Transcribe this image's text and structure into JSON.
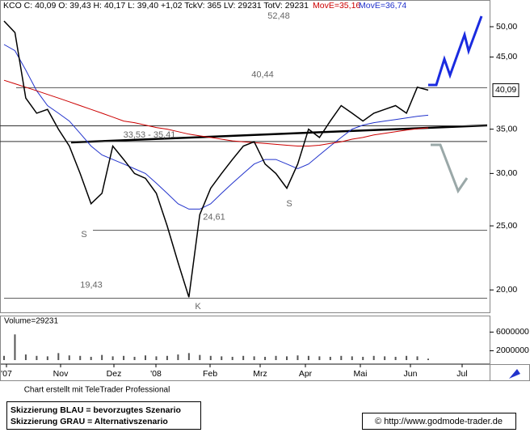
{
  "chart_data": {
    "type": "line",
    "log_scale": true,
    "ylim": [
      18.5,
      53.5
    ],
    "yticks": [
      {
        "value": 20,
        "label": "20,00"
      },
      {
        "value": 25,
        "label": "25,00"
      },
      {
        "value": 30,
        "label": "30,00"
      },
      {
        "value": 35,
        "label": "35,00"
      },
      {
        "value": 45,
        "label": "45,00"
      },
      {
        "value": 50,
        "label": "50,00"
      }
    ],
    "categories": [
      null,
      null,
      null,
      null,
      null,
      null,
      null,
      null,
      null,
      null,
      null,
      null,
      null,
      null,
      null,
      null,
      null,
      null,
      null,
      null,
      null,
      null,
      null,
      null,
      null,
      null,
      null,
      null,
      null,
      null,
      null,
      null,
      null,
      null,
      null,
      null,
      null,
      null,
      null,
      null
    ],
    "month_labels": [
      "'07",
      "Nov",
      "Dez",
      "'08",
      "Feb",
      "Mrz",
      "Apr",
      "Mai",
      "Jun",
      "Jul"
    ],
    "series": [
      {
        "name": "KCO C: 40,09 O: 39,43 H: 40,17 L: 39,40 +1,02 TckV: 365 LV: 29231 TotV: 29231",
        "color": "#000000",
        "values": [
          51,
          49,
          39,
          37,
          37.5,
          35,
          33,
          30,
          27,
          28,
          33,
          31.5,
          30,
          29.5,
          28,
          25,
          22,
          19.5,
          26,
          28.5,
          30,
          31.5,
          33,
          33.5,
          31,
          30,
          28.5,
          31,
          35,
          34,
          36,
          38,
          37,
          36,
          37,
          37.5,
          38,
          37,
          40.5,
          40.09
        ]
      },
      {
        "name": "MovE=35,16",
        "color": "#cc0000",
        "values": [
          41.5,
          41,
          40.5,
          40,
          39.5,
          39,
          38.5,
          38,
          37.5,
          37,
          36.5,
          36,
          35.8,
          35.5,
          35.2,
          35,
          34.7,
          34.4,
          34.2,
          34,
          33.8,
          33.6,
          33.5,
          33.4,
          33.3,
          33.2,
          33.1,
          33,
          33,
          33.1,
          33.3,
          33.5,
          33.8,
          34,
          34.3,
          34.5,
          34.7,
          34.9,
          35.05,
          35.16
        ]
      },
      {
        "name": "MovE=36,74",
        "color": "#2233cc",
        "values": [
          47,
          46,
          43,
          40,
          38,
          37,
          36,
          34.5,
          33,
          32,
          31.5,
          31,
          30.5,
          30,
          29,
          28,
          27,
          26.5,
          26.5,
          27,
          28,
          29,
          30,
          31,
          31.5,
          31.5,
          31,
          30.5,
          31,
          32,
          33,
          34,
          35,
          35.5,
          35.8,
          36,
          36.2,
          36.4,
          36.6,
          36.74
        ]
      }
    ],
    "last_price": {
      "value": 40.09,
      "label": "40,09"
    },
    "levels": [
      {
        "value": 52.48,
        "label": "52,48"
      },
      {
        "value": 40.44,
        "label": "40,44"
      },
      {
        "value": 24.61,
        "label": "24,61"
      },
      {
        "value": 19.43,
        "label": "19,43"
      }
    ],
    "zone": {
      "label": "33,53 - 35,41",
      "values": [
        33.53,
        35.41
      ]
    },
    "point_labels": [
      "S",
      "S",
      "K"
    ],
    "volume": {
      "label": "Volume=29231",
      "ylim": [
        0,
        7800000
      ],
      "yticks": [
        2000000,
        6000000
      ],
      "values": [
        900000,
        5500000,
        1200000,
        900000,
        800000,
        1500000,
        1000000,
        900000,
        700000,
        1100000,
        800000,
        900000,
        700000,
        1000000,
        800000,
        900000,
        1200000,
        1500000,
        1100000,
        900000,
        800000,
        700000,
        900000,
        800000,
        700000,
        900000,
        800000,
        1000000,
        900000,
        800000,
        700000,
        900000,
        800000,
        700000,
        900000,
        800000,
        700000,
        900000,
        800000,
        300000
      ]
    },
    "credit": "Chart erstellt mit TeleTrader Professional",
    "legend_notes": [
      "Skizzierung BLAU = bevorzugtes Szenario",
      "Skizzierung GRAU = Alternativszenario"
    ],
    "source": "© http://www.godmode-trader.de"
  }
}
